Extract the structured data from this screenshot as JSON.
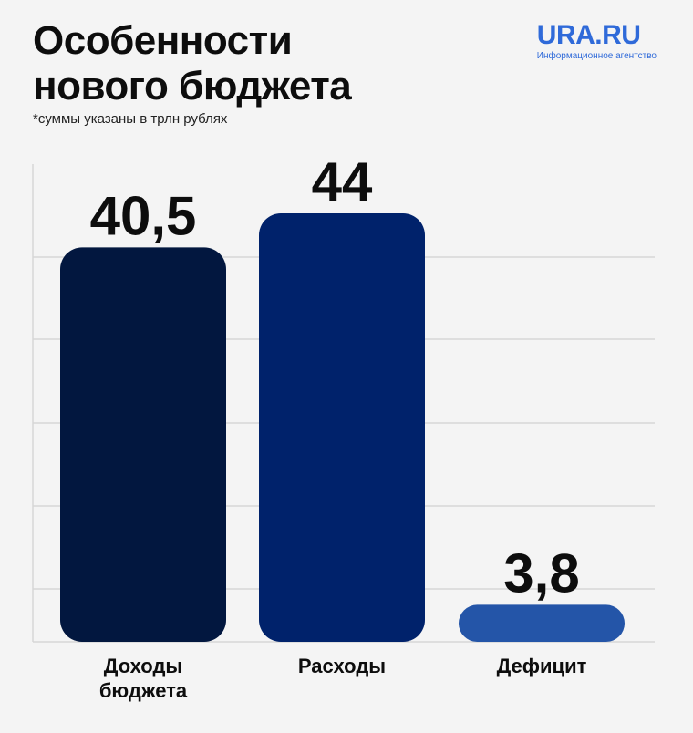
{
  "header": {
    "title_line1": "Особенности",
    "title_line2": "нового бюджета",
    "subtitle": "*суммы указаны в трлн рублях"
  },
  "brand": {
    "name": "URA.RU",
    "tagline": "Информационное агентство",
    "color": "#2f6ad9"
  },
  "chart_data": {
    "type": "bar",
    "title": "Особенности нового бюджета",
    "subtitle": "*суммы указаны в трлн рублях",
    "categories": [
      [
        "Доходы",
        "бюджета"
      ],
      [
        "Расходы"
      ],
      [
        "Дефицит"
      ]
    ],
    "values": [
      40.5,
      44,
      3.8
    ],
    "value_labels": [
      "40,5",
      "44",
      "3,8"
    ],
    "colors": [
      "#02173f",
      "#00226b",
      "#2455a8"
    ],
    "ylim": [
      0,
      44
    ],
    "grid": true
  }
}
